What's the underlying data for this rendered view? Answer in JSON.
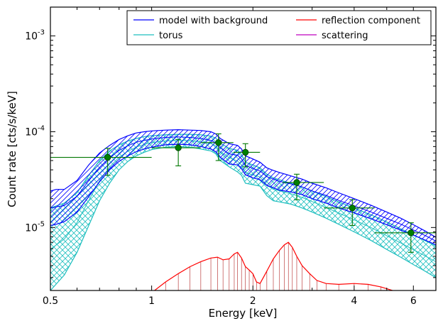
{
  "chart_data": {
    "type": "line",
    "xlabel": "Energy [keV]",
    "ylabel": "Count rate [cts/s/keV]",
    "x_scale": "log",
    "y_scale": "log",
    "xlim": [
      0.5,
      7.0
    ],
    "ylim": [
      2.2e-06,
      0.002
    ],
    "x_tick_labels": [
      {
        "value": 0.5,
        "label": "0.5"
      },
      {
        "value": 1,
        "label": "1"
      },
      {
        "value": 2,
        "label": "2"
      },
      {
        "value": 4,
        "label": "4"
      },
      {
        "value": 6,
        "label": "6"
      }
    ],
    "y_tick_labels": [
      {
        "value": 1e-05,
        "base": "10",
        "exp": "-5"
      },
      {
        "value": 0.0001,
        "base": "10",
        "exp": "-4"
      },
      {
        "value": 0.001,
        "base": "10",
        "exp": "-3"
      }
    ],
    "legend": {
      "placement": "top-right",
      "columns": 2,
      "entries": [
        {
          "label": "model with background",
          "color": "#0000ff"
        },
        {
          "label": "torus",
          "color": "#1fbfbf"
        },
        {
          "label": "reflection component",
          "color": "#ff0000"
        },
        {
          "label": "scattering",
          "color": "#bf00bf"
        }
      ]
    },
    "series": [
      {
        "name": "model with background",
        "color": "#0000ff",
        "x": [
          0.5,
          0.52,
          0.55,
          0.6,
          0.65,
          0.7,
          0.75,
          0.8,
          0.85,
          0.9,
          0.95,
          1.0,
          1.1,
          1.2,
          1.3,
          1.4,
          1.5,
          1.55,
          1.6,
          1.7,
          1.8,
          1.85,
          1.9,
          2.0,
          2.1,
          2.2,
          2.3,
          2.4,
          2.5,
          2.6,
          2.8,
          3.0,
          3.3,
          3.6,
          4.0,
          4.5,
          5.0,
          5.5,
          6.0,
          6.5,
          7.0
        ],
        "lower": [
          1.05e-05,
          1.08e-05,
          1.15e-05,
          1.45e-05,
          2.1e-05,
          3e-05,
          4e-05,
          4.9e-05,
          5.6e-05,
          6.2e-05,
          6.6e-05,
          6.9e-05,
          7.3e-05,
          7.4e-05,
          7.3e-05,
          7e-05,
          6.6e-05,
          6.2e-05,
          5.4e-05,
          4.6e-05,
          4.5e-05,
          4.1e-05,
          3.55e-05,
          3.3e-05,
          3.15e-05,
          2.75e-05,
          2.6e-05,
          2.45e-05,
          2.4e-05,
          2.35e-05,
          2.2e-05,
          2e-05,
          1.8e-05,
          1.6e-05,
          1.42e-05,
          1.23e-05,
          1.07e-05,
          9.4e-06,
          8.3e-06,
          7.4e-06,
          6.6e-06
        ],
        "upper": [
          2.4e-05,
          2.5e-05,
          2.5e-05,
          3.1e-05,
          4.5e-05,
          6e-05,
          7.2e-05,
          8.3e-05,
          9.1e-05,
          9.7e-05,
          0.0001,
          0.000102,
          0.000104,
          0.000105,
          0.000104,
          0.000103,
          0.0001,
          9.5e-05,
          8.5e-05,
          7.5e-05,
          7.2e-05,
          6.6e-05,
          5.6e-05,
          5.2e-05,
          4.8e-05,
          4.2e-05,
          3.95e-05,
          3.75e-05,
          3.6e-05,
          3.45e-05,
          3.2e-05,
          2.9e-05,
          2.6e-05,
          2.3e-05,
          2e-05,
          1.7e-05,
          1.45e-05,
          1.25e-05,
          1.07e-05,
          9.2e-06,
          7.9e-06
        ]
      },
      {
        "name": "torus",
        "color": "#1fbfbf",
        "x": [
          0.5,
          0.55,
          0.6,
          0.65,
          0.7,
          0.75,
          0.8,
          0.85,
          0.9,
          0.95,
          1.0,
          1.1,
          1.2,
          1.3,
          1.4,
          1.5,
          1.55,
          1.6,
          1.7,
          1.8,
          1.85,
          1.9,
          2.0,
          2.1,
          2.2,
          2.3,
          2.4,
          2.5,
          2.6,
          2.8,
          3.0,
          3.3,
          3.6,
          4.0,
          4.5,
          5.0,
          5.5,
          6.0,
          6.5,
          7.0
        ],
        "lower": [
          2.2e-06,
          3.2e-06,
          5.5e-06,
          1.05e-05,
          1.9e-05,
          2.9e-05,
          4e-05,
          4.9e-05,
          5.6e-05,
          6.1e-05,
          6.5e-05,
          6.9e-05,
          7e-05,
          6.9e-05,
          6.6e-05,
          6.3e-05,
          5.9e-05,
          5e-05,
          4.3e-05,
          3.8e-05,
          3.5e-05,
          2.9e-05,
          2.8e-05,
          2.7e-05,
          2.15e-05,
          1.9e-05,
          1.85e-05,
          1.8e-05,
          1.75e-05,
          1.6e-05,
          1.45e-05,
          1.25e-05,
          1.08e-05,
          9e-06,
          7.3e-06,
          5.9e-06,
          4.9e-06,
          4.1e-06,
          3.5e-06,
          3e-06
        ],
        "upper": [
          1.6e-05,
          1.8e-05,
          2.3e-05,
          3.5e-05,
          5e-05,
          6.3e-05,
          7.3e-05,
          8e-05,
          8.5e-05,
          8.9e-05,
          9.1e-05,
          9.3e-05,
          9.4e-05,
          9.4e-05,
          9.3e-05,
          9e-05,
          8.6e-05,
          7.6e-05,
          6.7e-05,
          6.4e-05,
          5.8e-05,
          4.8e-05,
          4.5e-05,
          4.2e-05,
          3.6e-05,
          3.3e-05,
          3.15e-05,
          3e-05,
          2.9e-05,
          2.65e-05,
          2.4e-05,
          2.1e-05,
          1.85e-05,
          1.6e-05,
          1.35e-05,
          1.14e-05,
          9.7e-06,
          8.4e-06,
          7.3e-06,
          6.4e-06
        ]
      },
      {
        "name": "reflection component",
        "color": "#ff0000",
        "x": [
          1.02,
          1.1,
          1.2,
          1.3,
          1.4,
          1.5,
          1.57,
          1.63,
          1.7,
          1.76,
          1.8,
          1.85,
          1.9,
          1.95,
          2.0,
          2.05,
          2.1,
          2.2,
          2.3,
          2.4,
          2.48,
          2.55,
          2.62,
          2.7,
          2.8,
          2.95,
          3.1,
          3.3,
          3.6,
          4.0,
          4.4,
          4.8,
          5.2,
          5.6,
          6.0,
          6.5,
          7.0
        ],
        "y": [
          2.2e-06,
          2.7e-06,
          3.3e-06,
          3.9e-06,
          4.4e-06,
          4.8e-06,
          4.9e-06,
          4.6e-06,
          4.7e-06,
          5.3e-06,
          5.5e-06,
          4.8e-06,
          3.9e-06,
          3.6e-06,
          3.3e-06,
          2.7e-06,
          2.6e-06,
          3.5e-06,
          4.7e-06,
          5.8e-06,
          6.6e-06,
          7e-06,
          6.2e-06,
          5e-06,
          4e-06,
          3.3e-06,
          2.8e-06,
          2.6e-06,
          2.55e-06,
          2.6e-06,
          2.55e-06,
          2.4e-06,
          2.2e-06,
          2.05e-06,
          1.9e-06,
          1.8e-06,
          1.7e-06
        ]
      }
    ],
    "data_points": {
      "color": "#007700",
      "points": [
        {
          "x": 0.74,
          "y": 5.4e-05,
          "xerr": [
            0.5,
            1.0
          ],
          "yerr": [
            3.5e-05,
            6.7e-05
          ]
        },
        {
          "x": 1.2,
          "y": 6.8e-05,
          "xerr": [
            1.0,
            1.4
          ],
          "yerr": [
            4.4e-05,
            8.3e-05
          ]
        },
        {
          "x": 1.58,
          "y": 7.7e-05,
          "xerr": [
            1.4,
            1.75
          ],
          "yerr": [
            5e-05,
            9.5e-05
          ]
        },
        {
          "x": 1.9,
          "y": 6.1e-05,
          "xerr": [
            1.75,
            2.1
          ],
          "yerr": [
            4.3e-05,
            7.5e-05
          ]
        },
        {
          "x": 2.7,
          "y": 2.95e-05,
          "xerr": [
            2.45,
            3.25
          ],
          "yerr": [
            1.95e-05,
            3.6e-05
          ]
        },
        {
          "x": 3.95,
          "y": 1.6e-05,
          "xerr": [
            3.25,
            4.6
          ],
          "yerr": [
            1.05e-05,
            1.95e-05
          ]
        },
        {
          "x": 5.9,
          "y": 8.8e-06,
          "xerr": [
            4.6,
            7.0
          ],
          "yerr": [
            5.5e-06,
            1.12e-05
          ]
        }
      ]
    }
  }
}
